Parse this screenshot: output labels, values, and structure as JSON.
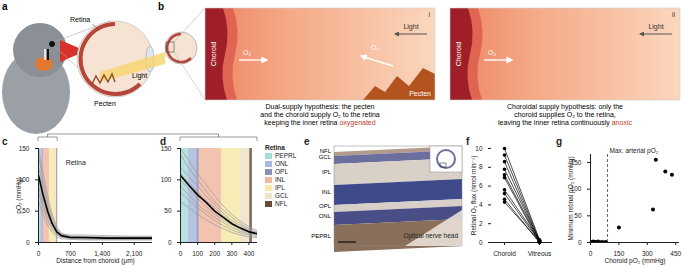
{
  "panels": {
    "a": {
      "letter": "a",
      "retina": "Retina",
      "pecten": "Pecten",
      "light": "Light"
    },
    "b": {
      "letter": "b",
      "hypotheses": [
        {
          "numeral": "i",
          "choroid": "Choroid",
          "o2": "O₂",
          "light": "Light",
          "pecten": "Pecten",
          "caption": [
            "Dual-supply hypothesis: the pecten",
            "and the choroid supply O₂ to the retina",
            "keeping the inner retina oxygenated"
          ],
          "highlight": "oxygenated"
        },
        {
          "numeral": "ii",
          "choroid": "Choroid",
          "o2": "O₂",
          "light": "Light",
          "caption": [
            "Choroidal supply hypothesis: only the",
            "choroid supplies O₂ to the retina,",
            "leaving the inner retina continuously anoxic"
          ],
          "highlight": "anoxic"
        }
      ]
    },
    "e": {
      "letter": "e",
      "layers": [
        "NFL",
        "GCL",
        "IPL",
        "INL",
        "OPL",
        "ONL",
        "PEPRL"
      ],
      "label": "Optical nerve head"
    }
  },
  "chart_data": [
    {
      "type": "line",
      "title": "c",
      "x_label": "Distance from choroid (µm)",
      "y_label": "pO₂ (mmHg)",
      "xlim": [
        0,
        2500
      ],
      "xticks": [
        0,
        700,
        {
          "value": 1400,
          "label": "1,400"
        },
        {
          "value": 2100,
          "label": "2,100"
        }
      ],
      "ylim": [
        0,
        150
      ],
      "yticks": [
        0,
        50,
        100,
        150
      ],
      "annotations": [
        "Retina"
      ],
      "layers": [
        {
          "name": "PEPRL",
          "color": "#a8dcd9",
          "range": [
            0,
            45
          ]
        },
        {
          "name": "ONL",
          "color": "#a9b9dc",
          "range": [
            45,
            95
          ]
        },
        {
          "name": "OPL",
          "color": "#8e8fb5",
          "range": [
            95,
            110
          ]
        },
        {
          "name": "INL",
          "color": "#f2b8a2",
          "range": [
            110,
            240
          ]
        },
        {
          "name": "IPL",
          "color": "#f6e9a8",
          "range": [
            240,
            350
          ]
        },
        {
          "name": "GCL",
          "color": "#efe3c8",
          "range": [
            350,
            405
          ]
        },
        {
          "name": "NFL",
          "color": "#6b4a3a",
          "range": [
            405,
            420
          ]
        }
      ],
      "x": [
        0,
        100,
        200,
        300,
        400,
        500,
        700,
        1000,
        1500,
        2000,
        2500
      ],
      "series": [
        {
          "color": "#999999",
          "values": [
            150,
            110,
            75,
            45,
            25,
            15,
            10,
            9,
            8,
            8,
            8
          ]
        },
        {
          "color": "#999999",
          "values": [
            140,
            100,
            65,
            40,
            22,
            14,
            10,
            10,
            9,
            9,
            9
          ]
        },
        {
          "color": "#999999",
          "values": [
            120,
            90,
            60,
            35,
            20,
            13,
            12,
            12,
            11,
            10,
            10
          ]
        },
        {
          "color": "#999999",
          "values": [
            110,
            80,
            55,
            32,
            18,
            12,
            9,
            8,
            7,
            7,
            7
          ]
        },
        {
          "color": "#999999",
          "values": [
            100,
            70,
            45,
            28,
            16,
            10,
            8,
            7,
            6,
            6,
            6
          ]
        },
        {
          "color": "#999999",
          "values": [
            90,
            60,
            40,
            24,
            14,
            9,
            7,
            6,
            6,
            5,
            5
          ]
        },
        {
          "color": "#999999",
          "values": [
            80,
            55,
            35,
            20,
            12,
            8,
            6,
            5,
            5,
            5,
            5
          ]
        },
        {
          "color": "#999999",
          "values": [
            65,
            45,
            28,
            16,
            9,
            6,
            5,
            4,
            4,
            4,
            4
          ]
        },
        {
          "color": "#000000",
          "values": [
            107,
            76,
            50,
            30,
            17,
            11,
            8,
            8,
            7,
            7,
            7
          ]
        }
      ]
    },
    {
      "type": "line",
      "title": "d",
      "xlim": [
        0,
        450
      ],
      "xticks": [
        0,
        100,
        200,
        300,
        400
      ],
      "ylim": [
        0,
        150
      ],
      "yticks": [
        0,
        50,
        100,
        150
      ],
      "layers_title": "Retina",
      "layers": [
        {
          "name": "PEPRL",
          "color": "#a8dcd9",
          "range": [
            0,
            45
          ]
        },
        {
          "name": "ONL",
          "color": "#a9b9dc",
          "range": [
            45,
            95
          ]
        },
        {
          "name": "OPL",
          "color": "#8e8fb5",
          "range": [
            95,
            110
          ]
        },
        {
          "name": "INL",
          "color": "#f2b8a2",
          "range": [
            110,
            240
          ]
        },
        {
          "name": "IPL",
          "color": "#f6e9a8",
          "range": [
            240,
            350
          ]
        },
        {
          "name": "GCL",
          "color": "#efe3c8",
          "range": [
            350,
            405
          ]
        },
        {
          "name": "NFL",
          "color": "#6b4a3a",
          "range": [
            405,
            420
          ]
        }
      ],
      "x": [
        0,
        50,
        100,
        150,
        200,
        250,
        300,
        350,
        400,
        450
      ],
      "series": [
        {
          "color": "#999999",
          "values": [
            150,
            130,
            110,
            92,
            75,
            58,
            45,
            34,
            25,
            19
          ]
        },
        {
          "color": "#999999",
          "values": [
            140,
            118,
            100,
            82,
            65,
            52,
            40,
            30,
            22,
            17
          ]
        },
        {
          "color": "#999999",
          "values": [
            120,
            105,
            90,
            74,
            60,
            47,
            35,
            27,
            20,
            16
          ]
        },
        {
          "color": "#999999",
          "values": [
            110,
            95,
            80,
            67,
            55,
            43,
            32,
            24,
            18,
            14
          ]
        },
        {
          "color": "#999999",
          "values": [
            100,
            85,
            70,
            57,
            45,
            36,
            28,
            21,
            16,
            12
          ]
        },
        {
          "color": "#999999",
          "values": [
            90,
            75,
            60,
            50,
            40,
            32,
            24,
            18,
            14,
            11
          ]
        },
        {
          "color": "#999999",
          "values": [
            80,
            67,
            55,
            45,
            35,
            27,
            20,
            15,
            12,
            9
          ]
        },
        {
          "color": "#999999",
          "values": [
            65,
            55,
            45,
            36,
            28,
            22,
            16,
            12,
            9,
            7
          ]
        },
        {
          "color": "#000000",
          "values": [
            107,
            91,
            76,
            64,
            50,
            40,
            30,
            23,
            17,
            14
          ]
        }
      ]
    },
    {
      "type": "line",
      "title": "f",
      "marker": "circle",
      "color": "#000000",
      "categories": [
        "Choroid",
        "Vitreous"
      ],
      "y_label": "Retinal O₂ flux (nmol min⁻¹)",
      "ylim": [
        0,
        10
      ],
      "yticks": [
        0,
        2,
        4,
        6,
        8,
        10
      ],
      "series": [
        {
          "values": [
            10,
            0.3
          ]
        },
        {
          "values": [
            9.3,
            0.2
          ]
        },
        {
          "values": [
            8.6,
            0.1
          ]
        },
        {
          "values": [
            7.8,
            0.2
          ]
        },
        {
          "values": [
            7.2,
            0.1
          ]
        },
        {
          "values": [
            6.9,
            0
          ]
        },
        {
          "values": [
            5.6,
            0.2
          ]
        },
        {
          "values": [
            5.2,
            0.1
          ]
        },
        {
          "values": [
            4.6,
            0
          ]
        },
        {
          "values": [
            4.3,
            0.1
          ]
        }
      ]
    },
    {
      "type": "scatter",
      "title": "g",
      "color": "#000000",
      "x_label": "Choroid pO₂ (mmHg)",
      "y_label": "Minimum retinal pO₂ (mmHg)",
      "xlim": [
        0,
        470
      ],
      "xticks": [
        0,
        150,
        300,
        450
      ],
      "ylim": [
        0,
        165
      ],
      "yticks": [
        0,
        50,
        100,
        150
      ],
      "vlines": [
        {
          "value": 90,
          "label": "Max. arterial pO₂"
        }
      ],
      "x": [
        5,
        10,
        15,
        20,
        25,
        30,
        40,
        50,
        60,
        70,
        80,
        150,
        330,
        345,
        395,
        430
      ],
      "values": [
        1,
        0,
        2,
        0,
        1,
        0,
        2,
        0,
        1,
        0,
        1,
        28,
        62,
        155,
        133,
        127
      ]
    }
  ]
}
